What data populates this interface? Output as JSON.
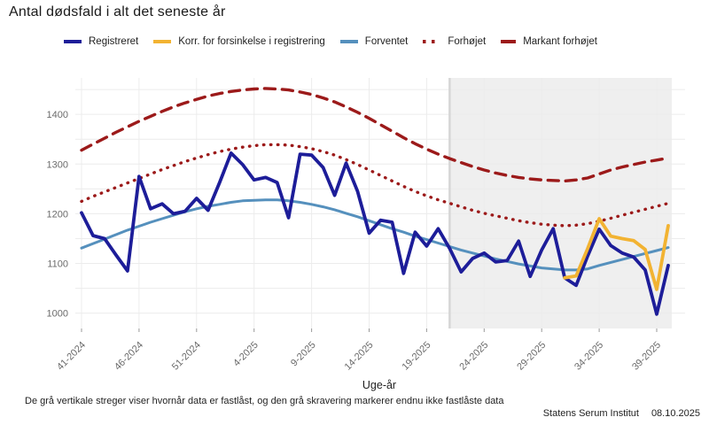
{
  "title": "Antal dødsfald i alt det seneste år",
  "legend": [
    {
      "label": "Registreret",
      "color": "#1d1d99",
      "style": "solid"
    },
    {
      "label": "Korr. for forsinkelse i registrering",
      "color": "#f2b332",
      "style": "solid"
    },
    {
      "label": "Forventet",
      "color": "#5590bd",
      "style": "solid"
    },
    {
      "label": "Forhøjet",
      "color": "#9c1a1a",
      "style": "dotted"
    },
    {
      "label": "Markant forhøjet",
      "color": "#9c1a1a",
      "style": "dashed"
    }
  ],
  "chart_data": {
    "type": "line",
    "title": "Antal dødsfald i alt det seneste år",
    "xlabel": "Uge-år",
    "ylabel": "",
    "ylim": [
      970,
      1470
    ],
    "grid_ylim": [
      1000,
      1450
    ],
    "gridline_step": 50,
    "y_tick_labels": [
      "1000",
      "1100",
      "1200",
      "1300",
      "1400"
    ],
    "y_tick_values": [
      1000,
      1100,
      1200,
      1300,
      1400
    ],
    "x_tick_labels": [
      "41-2024",
      "46-2024",
      "51-2024",
      "4-2025",
      "9-2025",
      "14-2025",
      "19-2025",
      "24-2025",
      "29-2025",
      "34-2025",
      "39-2025"
    ],
    "x_tick_indices": [
      0,
      5,
      10,
      15,
      20,
      25,
      30,
      35,
      40,
      45,
      50
    ],
    "x_weeks": [
      "41-2024",
      "42-2024",
      "43-2024",
      "44-2024",
      "45-2024",
      "46-2024",
      "47-2024",
      "48-2024",
      "49-2024",
      "50-2024",
      "51-2024",
      "52-2024",
      "1-2025",
      "2-2025",
      "3-2025",
      "4-2025",
      "5-2025",
      "6-2025",
      "7-2025",
      "8-2025",
      "9-2025",
      "10-2025",
      "11-2025",
      "12-2025",
      "13-2025",
      "14-2025",
      "15-2025",
      "16-2025",
      "17-2025",
      "18-2025",
      "19-2025",
      "20-2025",
      "21-2025",
      "22-2025",
      "23-2025",
      "24-2025",
      "25-2025",
      "26-2025",
      "27-2025",
      "28-2025",
      "29-2025",
      "30-2025",
      "31-2025",
      "32-2025",
      "33-2025",
      "34-2025",
      "35-2025",
      "36-2025",
      "37-2025",
      "38-2025",
      "39-2025",
      "40-2025"
    ],
    "series": [
      {
        "name": "Registreret",
        "color": "#1d1d99",
        "style": "solid",
        "width": 3.8,
        "start_index": 0,
        "values": [
          1202,
          1156,
          1150,
          1117,
          1085,
          1275,
          1210,
          1220,
          1200,
          1205,
          1231,
          1207,
          1263,
          1322,
          1299,
          1268,
          1273,
          1263,
          1192,
          1320,
          1318,
          1293,
          1237,
          1302,
          1245,
          1161,
          1187,
          1183,
          1080,
          1163,
          1135,
          1170,
          1130,
          1083,
          1110,
          1121,
          1103,
          1106,
          1145,
          1074,
          1127,
          1170,
          1071,
          1056,
          1115,
          1169,
          1136,
          1121,
          1113,
          1087,
          998,
          1096
        ]
      },
      {
        "name": "Korr. for forsinkelse i registrering",
        "color": "#f2b332",
        "style": "solid",
        "width": 3.8,
        "start_index": 42,
        "values": [
          1071,
          1075,
          1130,
          1190,
          1155,
          1150,
          1146,
          1128,
          1048,
          1176
        ]
      },
      {
        "name": "Forventet",
        "color": "#5590bd",
        "style": "solid",
        "width": 3,
        "start_index": 0,
        "values": [
          1131,
          1140,
          1149,
          1158,
          1167,
          1175,
          1183,
          1190,
          1197,
          1204,
          1210,
          1215,
          1219,
          1223,
          1226,
          1227,
          1228,
          1228,
          1226,
          1223,
          1219,
          1214,
          1208,
          1201,
          1194,
          1186,
          1178,
          1170,
          1163,
          1155,
          1148,
          1141,
          1134,
          1127,
          1121,
          1115,
          1109,
          1104,
          1099,
          1095,
          1091,
          1089,
          1087,
          1087,
          1089,
          1096,
          1102,
          1108,
          1114,
          1120,
          1126,
          1132
        ]
      },
      {
        "name": "Forhøjet",
        "color": "#9c1a1a",
        "style": "dotted",
        "width": 3.4,
        "start_index": 0,
        "values": [
          1225,
          1235,
          1244,
          1253,
          1262,
          1271,
          1280,
          1289,
          1297,
          1305,
          1312,
          1319,
          1325,
          1330,
          1334,
          1337,
          1339,
          1339,
          1338,
          1335,
          1331,
          1325,
          1318,
          1309,
          1299,
          1288,
          1277,
          1266,
          1255,
          1245,
          1236,
          1228,
          1221,
          1214,
          1207,
          1201,
          1196,
          1191,
          1186,
          1182,
          1179,
          1177,
          1176,
          1177,
          1180,
          1185,
          1191,
          1197,
          1203,
          1209,
          1215,
          1221
        ]
      },
      {
        "name": "Markant forhøjet",
        "color": "#9c1a1a",
        "style": "dashed",
        "width": 3.4,
        "start_index": 0,
        "values": [
          1328,
          1340,
          1352,
          1364,
          1375,
          1386,
          1396,
          1406,
          1415,
          1423,
          1430,
          1437,
          1442,
          1446,
          1449,
          1451,
          1452,
          1451,
          1449,
          1445,
          1440,
          1433,
          1425,
          1415,
          1404,
          1392,
          1379,
          1366,
          1353,
          1341,
          1330,
          1320,
          1311,
          1303,
          1295,
          1288,
          1282,
          1277,
          1273,
          1270,
          1268,
          1267,
          1266,
          1268,
          1272,
          1280,
          1288,
          1294,
          1299,
          1304,
          1308,
          1312
        ]
      }
    ],
    "locked_data": {
      "boundary_week": "21-2025",
      "boundary_index": 32,
      "shaded": true,
      "shade_color": "#efefef",
      "line_color": "#d6d6d6"
    },
    "legend_position": "top",
    "grid": true
  },
  "footer": {
    "note": "De grå vertikale streger viser hvornår data er fastlåst, og den grå skravering markerer endnu ikke fastlåste data",
    "source": "Statens Serum Institut",
    "date": "08.10.2025"
  }
}
